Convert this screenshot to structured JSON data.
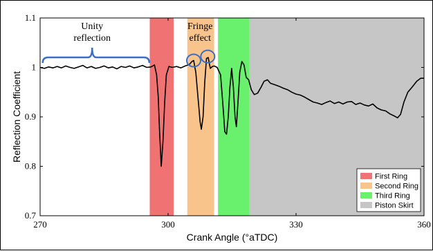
{
  "chart_data": {
    "type": "line",
    "xlabel": "Crank Angle (°aTDC)",
    "ylabel": "Reflection Coefficient",
    "xlim": [
      270,
      360
    ],
    "ylim": [
      0.7,
      1.1
    ],
    "xticks": [
      "270",
      "300",
      "330",
      "360"
    ],
    "yticks": [
      "0.7",
      "0.8",
      "0.9",
      "1",
      "1.1"
    ],
    "grid": false,
    "legend_position": "bottom-right",
    "regions": [
      {
        "name": "First Ring",
        "x0": 295.7,
        "x1": 301.3,
        "color": "#f07272"
      },
      {
        "name": "Second Ring",
        "x0": 304.5,
        "x1": 310.8,
        "color": "#f9c48c"
      },
      {
        "name": "Third Ring",
        "x0": 311.7,
        "x1": 319.1,
        "color": "#69f06c"
      },
      {
        "name": "Piston Skirt",
        "x0": 319.1,
        "x1": 360,
        "color": "#c6c6c6"
      }
    ],
    "annotations": [
      {
        "text_lines": [
          "Unity",
          "reflection"
        ],
        "x": 282.2,
        "y": 1.075
      },
      {
        "text_lines": [
          "Fringe",
          "effect"
        ],
        "x": 307.5,
        "y": 1.075
      }
    ],
    "series": [
      {
        "color": "#000000",
        "points": [
          [
            270.0,
            1.0
          ],
          [
            271.0,
            0.998
          ],
          [
            272.0,
            1.001
          ],
          [
            273.0,
            0.999
          ],
          [
            274.0,
            1.002
          ],
          [
            275.0,
            0.999
          ],
          [
            276.0,
            1.003
          ],
          [
            277.0,
            1.0
          ],
          [
            278.0,
            0.998
          ],
          [
            279.0,
            1.001
          ],
          [
            280.0,
            1.004
          ],
          [
            281.0,
            0.999
          ],
          [
            282.0,
            1.002
          ],
          [
            283.0,
            0.998
          ],
          [
            284.0,
            1.0
          ],
          [
            285.0,
            1.003
          ],
          [
            286.0,
            0.999
          ],
          [
            287.0,
            1.001
          ],
          [
            288.0,
            0.997
          ],
          [
            289.0,
            1.002
          ],
          [
            290.0,
            1.0
          ],
          [
            291.0,
            1.003
          ],
          [
            292.0,
            0.999
          ],
          [
            293.0,
            1.001
          ],
          [
            294.0,
            1.004
          ],
          [
            295.0,
            1.0
          ],
          [
            296.0,
            1.001
          ],
          [
            296.8,
            1.005
          ],
          [
            297.3,
            0.985
          ],
          [
            297.7,
            0.94
          ],
          [
            298.0,
            0.87
          ],
          [
            298.4,
            0.8
          ],
          [
            298.8,
            0.85
          ],
          [
            299.2,
            0.93
          ],
          [
            299.6,
            0.985
          ],
          [
            300.2,
            1.002
          ],
          [
            301.0,
            1.0
          ],
          [
            302.0,
            1.002
          ],
          [
            303.0,
            0.999
          ],
          [
            304.0,
            1.003
          ],
          [
            305.0,
            1.006
          ],
          [
            305.6,
            1.012
          ],
          [
            306.0,
            1.014
          ],
          [
            306.5,
            0.99
          ],
          [
            307.0,
            0.94
          ],
          [
            307.5,
            0.89
          ],
          [
            307.8,
            0.875
          ],
          [
            308.2,
            0.9
          ],
          [
            308.6,
            0.97
          ],
          [
            309.0,
            1.018
          ],
          [
            309.4,
            1.02
          ],
          [
            309.9,
            0.998
          ],
          [
            310.4,
            1.002
          ],
          [
            310.8,
            1.003
          ],
          [
            311.5,
            1.0
          ],
          [
            312.3,
            0.985
          ],
          [
            312.9,
            0.92
          ],
          [
            313.3,
            0.87
          ],
          [
            313.7,
            0.865
          ],
          [
            314.1,
            0.9
          ],
          [
            314.5,
            0.96
          ],
          [
            314.9,
            0.998
          ],
          [
            315.3,
            0.96
          ],
          [
            315.7,
            0.9
          ],
          [
            316.0,
            0.88
          ],
          [
            316.4,
            0.93
          ],
          [
            316.8,
            0.99
          ],
          [
            317.3,
            1.012
          ],
          [
            317.8,
            1.005
          ],
          [
            318.3,
            0.98
          ],
          [
            318.9,
            0.975
          ],
          [
            319.5,
            0.955
          ],
          [
            320.2,
            0.945
          ],
          [
            321.0,
            0.948
          ],
          [
            321.8,
            0.96
          ],
          [
            322.5,
            0.972
          ],
          [
            323.3,
            0.975
          ],
          [
            324.0,
            0.968
          ],
          [
            325.0,
            0.965
          ],
          [
            326.0,
            0.962
          ],
          [
            327.0,
            0.958
          ],
          [
            328.0,
            0.955
          ],
          [
            329.0,
            0.95
          ],
          [
            330.0,
            0.946
          ],
          [
            331.0,
            0.944
          ],
          [
            332.0,
            0.94
          ],
          [
            333.0,
            0.935
          ],
          [
            334.0,
            0.93
          ],
          [
            335.0,
            0.928
          ],
          [
            336.0,
            0.925
          ],
          [
            337.0,
            0.929
          ],
          [
            338.0,
            0.932
          ],
          [
            339.0,
            0.927
          ],
          [
            340.0,
            0.93
          ],
          [
            341.0,
            0.926
          ],
          [
            342.0,
            0.93
          ],
          [
            343.0,
            0.931
          ],
          [
            344.0,
            0.925
          ],
          [
            345.0,
            0.928
          ],
          [
            346.0,
            0.924
          ],
          [
            347.0,
            0.922
          ],
          [
            348.0,
            0.926
          ],
          [
            349.0,
            0.918
          ],
          [
            350.0,
            0.914
          ],
          [
            351.0,
            0.912
          ],
          [
            352.0,
            0.906
          ],
          [
            353.0,
            0.902
          ],
          [
            353.8,
            0.898
          ],
          [
            354.5,
            0.905
          ],
          [
            355.3,
            0.93
          ],
          [
            356.2,
            0.95
          ],
          [
            357.2,
            0.96
          ],
          [
            358.3,
            0.972
          ],
          [
            359.2,
            0.978
          ],
          [
            360.0,
            0.978
          ]
        ]
      }
    ]
  }
}
